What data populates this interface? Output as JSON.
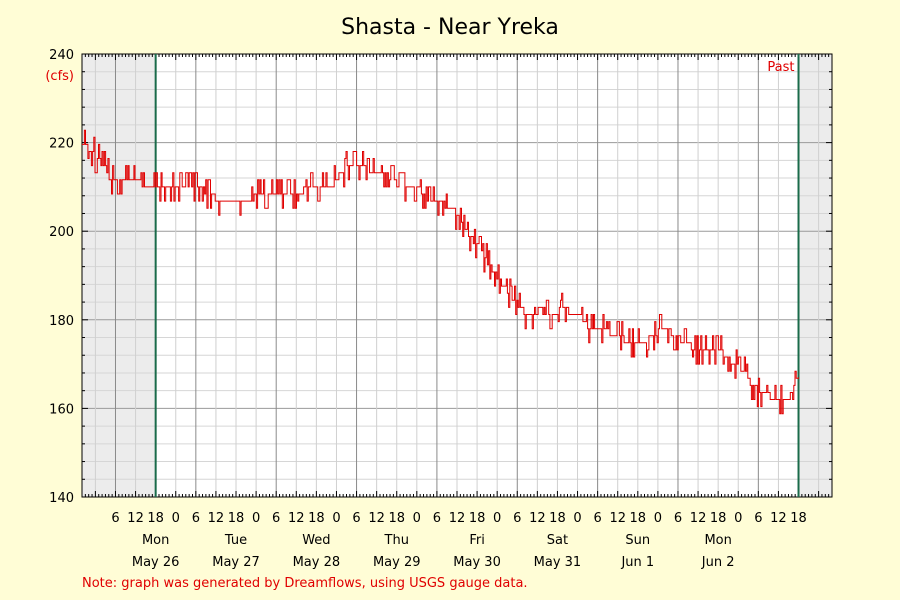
{
  "chart_data": {
    "type": "line",
    "title": "Shasta - Near Yreka",
    "ylabel": "(cfs)",
    "ylim": [
      140,
      240
    ],
    "yticks": [
      140,
      160,
      180,
      200,
      220,
      240
    ],
    "x_hour_ticks": [
      "6",
      "12",
      "18",
      "0",
      "6",
      "12",
      "18",
      "0",
      "6",
      "12",
      "18",
      "0",
      "6",
      "12",
      "18",
      "0",
      "6",
      "12",
      "18",
      "0",
      "6",
      "12",
      "18",
      "0",
      "6",
      "12",
      "18",
      "0",
      "6",
      "12",
      "18",
      "0",
      "6",
      "12",
      "18"
    ],
    "day_labels": [
      {
        "weekday": "Mon",
        "date": "May 26"
      },
      {
        "weekday": "Tue",
        "date": "May 27"
      },
      {
        "weekday": "Wed",
        "date": "May 28"
      },
      {
        "weekday": "Thu",
        "date": "May 29"
      },
      {
        "weekday": "Fri",
        "date": "May 30"
      },
      {
        "weekday": "Sat",
        "date": "May 31"
      },
      {
        "weekday": "Sun",
        "date": "Jun 1"
      },
      {
        "weekday": "Mon",
        "date": "Jun 2"
      }
    ],
    "past_label": "Past",
    "series": [
      {
        "color": "#e00000",
        "x_hours": [
          0,
          4,
          6,
          10,
          12,
          22,
          24,
          28,
          30,
          34,
          36,
          48,
          54,
          60,
          66,
          72,
          76,
          84,
          96,
          106,
          112,
          118,
          120,
          126,
          130,
          134,
          138,
          140,
          142,
          144,
          146,
          148,
          150,
          152,
          156,
          160,
          162,
          168,
          174,
          180,
          190,
          196,
          204,
          210,
          216,
          222,
          228,
          232,
          236,
          240,
          246,
          252,
          256,
          262,
          270,
          276,
          282,
          284,
          288,
          294,
          298,
          300,
          302,
          304
        ],
        "values": [
          219,
          218,
          216,
          214,
          211,
          211,
          211,
          209,
          209,
          210,
          210,
          210,
          208,
          206,
          206,
          207,
          208,
          208,
          209,
          210,
          214,
          215,
          214,
          212,
          212,
          210,
          209,
          209,
          210,
          208,
          207,
          206,
          206,
          206,
          205,
          203,
          200,
          196,
          191,
          186,
          180,
          180,
          182,
          181,
          177,
          177,
          176,
          174,
          174,
          175,
          178,
          176,
          174,
          173,
          173,
          170,
          167,
          165,
          163,
          162,
          161,
          162,
          165,
          167
        ]
      }
    ],
    "note": "Note: graph was generated by Dreamflows, using USGS gauge data."
  }
}
